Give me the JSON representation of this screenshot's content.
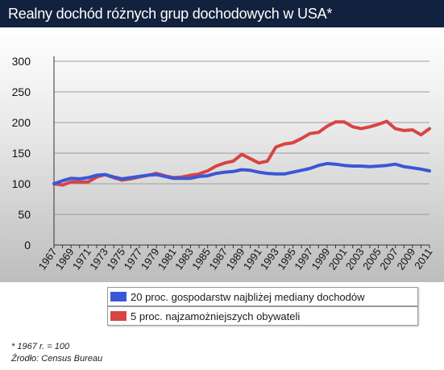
{
  "header": {
    "title": "Realny dochód różnych grup dochodowych w USA*"
  },
  "chart_data": {
    "type": "line",
    "title": "Realny dochód różnych grup dochodowych w USA*",
    "xlabel": "",
    "ylabel": "",
    "x": [
      1967,
      1968,
      1969,
      1970,
      1971,
      1972,
      1973,
      1974,
      1975,
      1976,
      1977,
      1978,
      1979,
      1980,
      1981,
      1982,
      1983,
      1984,
      1985,
      1986,
      1987,
      1988,
      1989,
      1990,
      1991,
      1992,
      1993,
      1994,
      1995,
      1996,
      1997,
      1998,
      1999,
      2000,
      2001,
      2002,
      2003,
      2004,
      2005,
      2006,
      2007,
      2008,
      2009,
      2010,
      2011
    ],
    "x_tick_labels": [
      "1967",
      "1969",
      "1971",
      "1973",
      "1975",
      "1977",
      "1979",
      "1981",
      "1983",
      "1985",
      "1987",
      "1989",
      "1991",
      "1993",
      "1995",
      "1997",
      "1999",
      "2001",
      "2003",
      "2005",
      "2007",
      "2009",
      "2011"
    ],
    "y_ticks": [
      0,
      50,
      100,
      150,
      200,
      250,
      300
    ],
    "ylim": [
      0,
      300
    ],
    "grid": true,
    "legend_position": "bottom",
    "series": [
      {
        "name": "20 proc. gospodarstw najbliżej mediany dochodów",
        "color": "#3b57d6",
        "values": [
          100,
          105,
          109,
          108,
          110,
          114,
          115,
          111,
          108,
          110,
          112,
          114,
          115,
          112,
          109,
          109,
          109,
          112,
          113,
          117,
          119,
          120,
          123,
          122,
          119,
          117,
          116,
          116,
          119,
          122,
          125,
          130,
          133,
          132,
          130,
          129,
          129,
          128,
          129,
          130,
          132,
          128,
          126,
          124,
          121
        ]
      },
      {
        "name": "5 proc. najzamożniejszych obywateli",
        "color": "#d84444",
        "values": [
          100,
          98,
          103,
          103,
          103,
          111,
          115,
          110,
          106,
          108,
          111,
          114,
          117,
          113,
          110,
          111,
          114,
          116,
          121,
          129,
          134,
          137,
          148,
          141,
          134,
          137,
          160,
          165,
          167,
          174,
          182,
          184,
          194,
          201,
          201,
          193,
          190,
          193,
          197,
          202,
          190,
          187,
          188,
          180,
          190
        ]
      }
    ]
  },
  "notes": {
    "base": "* 1967 r. = 100",
    "source": "Źrodło: Census Bureau"
  }
}
